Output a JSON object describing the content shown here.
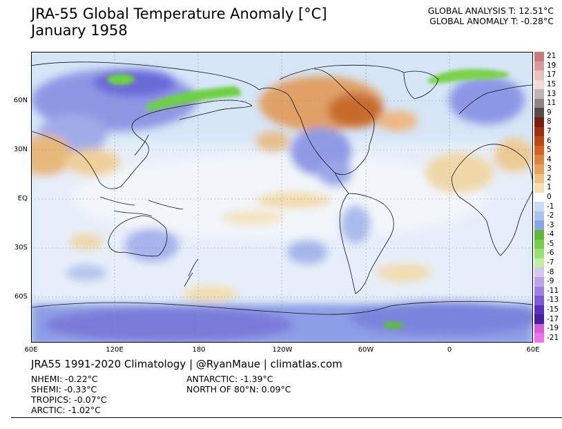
{
  "title": {
    "line1": "JRA-55 Global Temperature Anomaly [°C]",
    "line2": "January 1958"
  },
  "global_stats": {
    "analysis": "GLOBAL ANALYSIS T: 12.51°C",
    "anomaly": "GLOBAL ANOMALY T: -0.28°C"
  },
  "map": {
    "projection": "equirectangular, centered 180",
    "lat_labels": [
      "60N",
      "30N",
      "EQ",
      "30S",
      "60S"
    ],
    "lon_labels": [
      "60E",
      "120E",
      "180",
      "120W",
      "60W",
      "0",
      "60E"
    ],
    "features": [
      "warm-anomaly-north-america",
      "cold-anomaly-eastern-us",
      "cold-anomaly-antarctica",
      "cold-anomaly-siberia"
    ]
  },
  "colorbar": {
    "labels": [
      "21",
      "19",
      "17",
      "15",
      "13",
      "11",
      "9",
      "8",
      "7",
      "6",
      "5",
      "4",
      "3",
      "2",
      "1",
      "0",
      "-1",
      "-2",
      "-3",
      "-4",
      "-5",
      "-6",
      "-7",
      "-8",
      "-9",
      "-11",
      "-13",
      "-15",
      "-17",
      "-19",
      "-21"
    ],
    "colors": [
      "#c97a7a",
      "#d99a9a",
      "#e8c0c0",
      "#f1dada",
      "#bfb3b3",
      "#8e8585",
      "#5a4a4a",
      "#7a1e0a",
      "#9e2e0c",
      "#bd4612",
      "#d2641e",
      "#e0853a",
      "#e6a35c",
      "#edc384",
      "#f3dfb0",
      "#ffffff",
      "#c8dcf4",
      "#a9c3ee",
      "#8aa6e6",
      "#5fb83a",
      "#7acd48",
      "#9ae070",
      "#c0ef9d",
      "#d4c8f0",
      "#bba6ec",
      "#9d82e6",
      "#7a5ad8",
      "#5a30c0",
      "#4a1ea0",
      "#d060d8",
      "#f070f0"
    ]
  },
  "credit": "JRA55 1991-2020 Climatology | @RyanMaue | climatlas.com",
  "regions": {
    "nhemi": "NHEMI: -0.22°C",
    "shemi": "SHEMI: -0.33°C",
    "tropics": "TROPICS: -0.07°C",
    "arctic": "ARCTIC: -1.02°C",
    "antarctic": "ANTARCTIC: -1.39°C",
    "north80": "NORTH OF 80°N: 0.09°C"
  }
}
